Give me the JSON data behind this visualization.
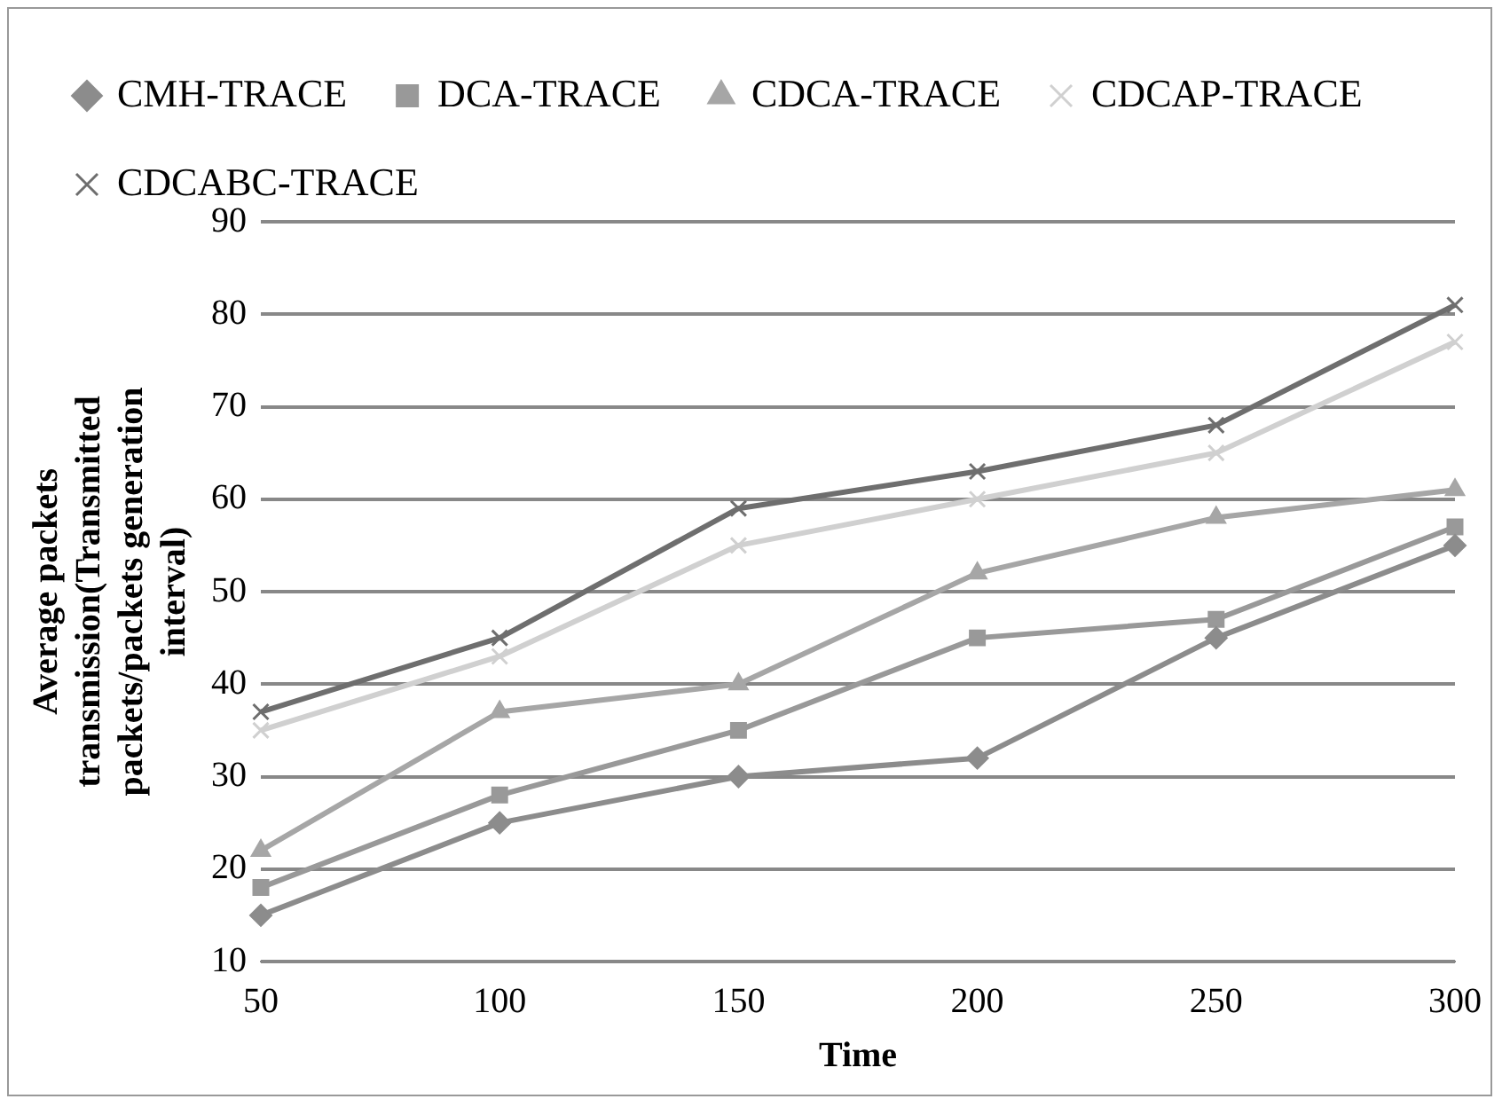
{
  "chart_data": {
    "type": "line",
    "xlabel": "Time",
    "ylabel": "Average packets transmission(Transmitted packets/packets generation interval)",
    "categories": [
      "50",
      "100",
      "150",
      "200",
      "250",
      "300"
    ],
    "series": [
      {
        "name": "CMH-TRACE",
        "color": "#8c8c8c",
        "marker": "diamond",
        "values": [
          15,
          25,
          30,
          32,
          45,
          55
        ]
      },
      {
        "name": "DCA-TRACE",
        "color": "#999999",
        "marker": "square",
        "values": [
          18,
          28,
          35,
          45,
          47,
          57
        ]
      },
      {
        "name": "CDCA-TRACE",
        "color": "#a6a6a6",
        "marker": "triangle",
        "values": [
          22,
          37,
          40,
          52,
          58,
          61
        ]
      },
      {
        "name": "CDCAP-TRACE",
        "color": "#d0d0d0",
        "marker": "cross",
        "values": [
          35,
          43,
          55,
          60,
          65,
          77
        ]
      },
      {
        "name": "CDCABC-TRACE",
        "color": "#6e6e6e",
        "marker": "cross",
        "values": [
          37,
          45,
          59,
          63,
          68,
          81
        ]
      }
    ],
    "ylim": [
      10,
      90
    ],
    "yticks": [
      10,
      20,
      30,
      40,
      50,
      60,
      70,
      80,
      90
    ],
    "grid": "y",
    "legend": "top"
  }
}
